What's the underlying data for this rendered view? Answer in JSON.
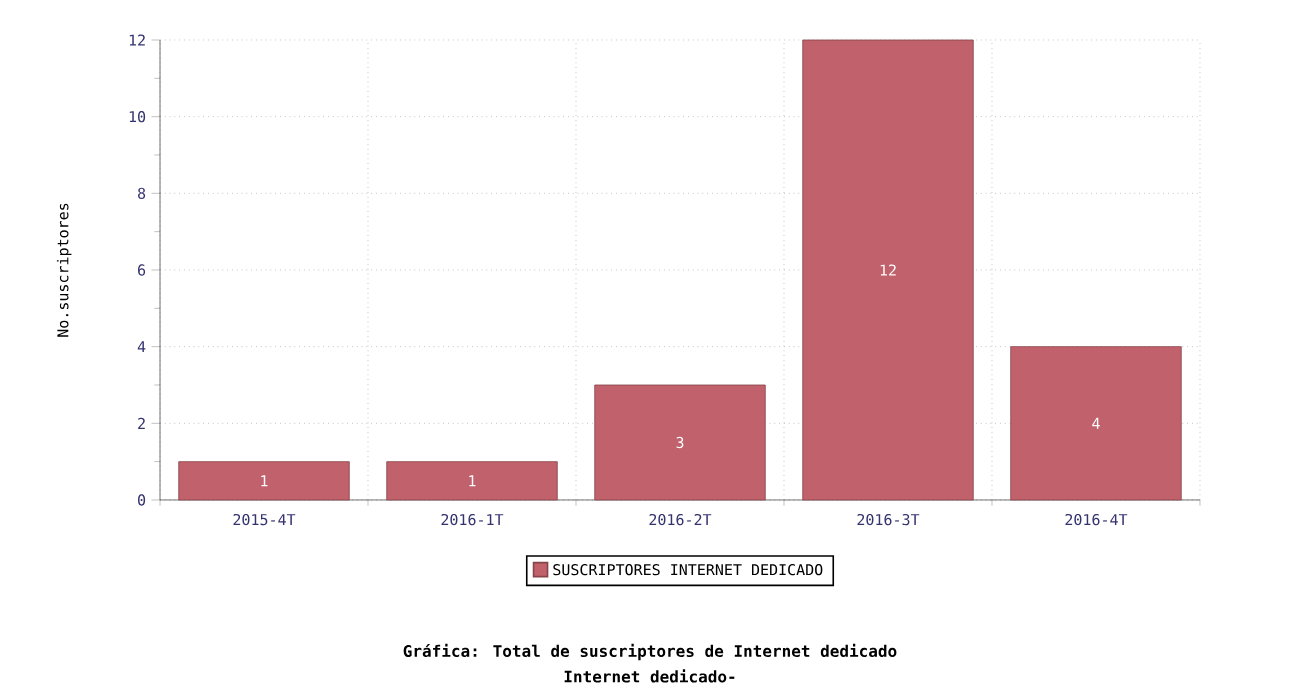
{
  "chart_data": {
    "type": "bar",
    "title": "Gráfica: Total de suscriptores de Internet dedicado",
    "subtitle": "Internet dedicado-",
    "ylabel": "No.suscriptores",
    "categories": [
      "2015-4T",
      "2016-1T",
      "2016-2T",
      "2016-3T",
      "2016-4T"
    ],
    "series": [
      {
        "name": "SUSCRIPTORES INTERNET DEDICADO",
        "color": "#c0616b",
        "values": [
          1,
          1,
          3,
          12,
          4
        ]
      }
    ],
    "ylim": [
      0,
      12
    ],
    "yticks": [
      0,
      2,
      4,
      6,
      8,
      10,
      12
    ],
    "grid": true,
    "legend": "bottom",
    "data_labels": true
  }
}
